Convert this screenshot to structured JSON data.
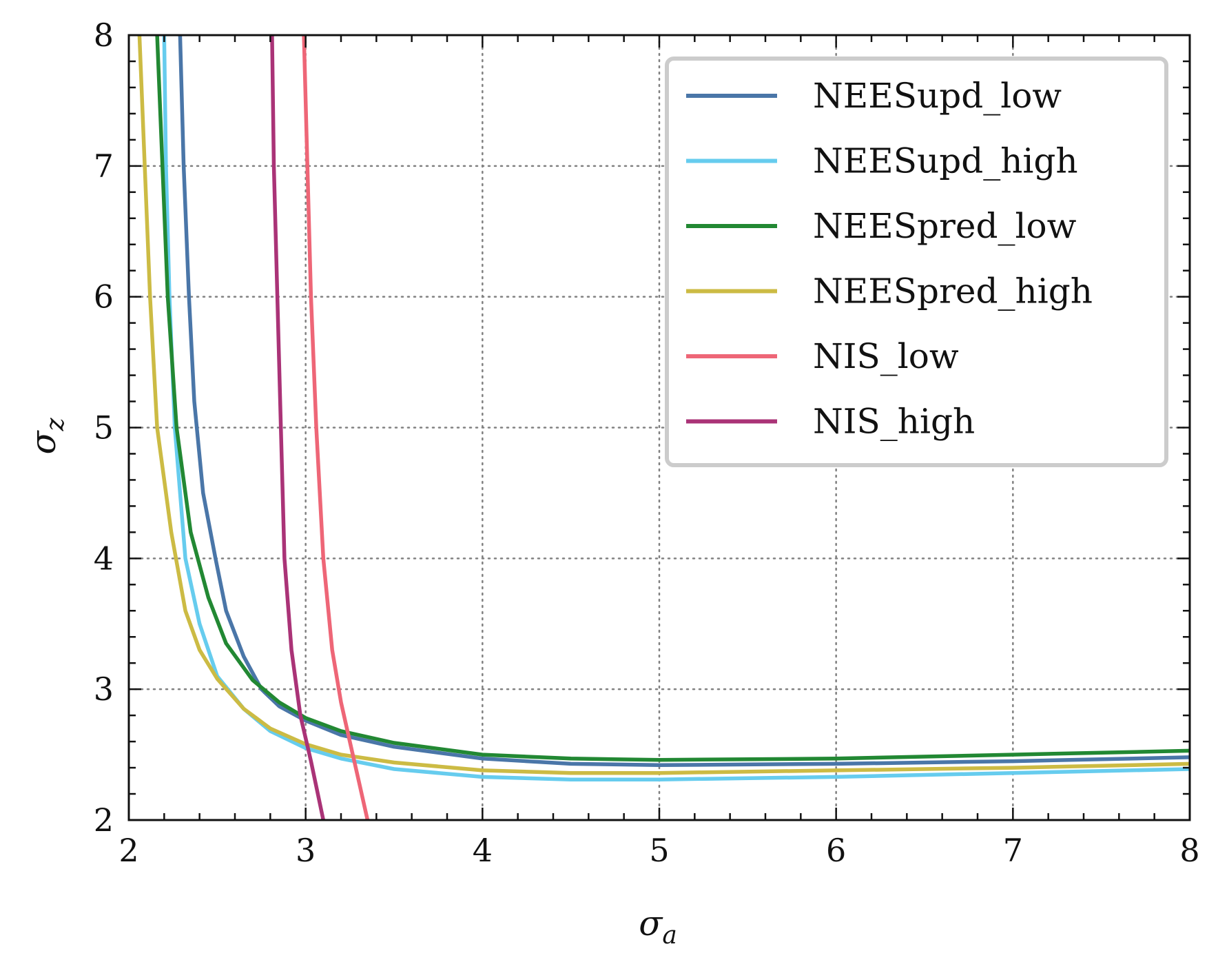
{
  "chart_data": {
    "type": "line",
    "title": "",
    "xlabel": "σ",
    "xlabel_sub": "a",
    "ylabel": "σ",
    "ylabel_sub": "z",
    "xlim": [
      2,
      8
    ],
    "ylim": [
      2,
      8
    ],
    "xticks": [
      "2",
      "3",
      "4",
      "5",
      "6",
      "7",
      "8"
    ],
    "yticks": [
      "2",
      "3",
      "4",
      "5",
      "6",
      "7",
      "8"
    ],
    "grid": true,
    "legend_position": "top-right",
    "series": [
      {
        "name": "NEESupd_low",
        "color": "#4a76a8",
        "points": [
          [
            2.29,
            8.0
          ],
          [
            2.31,
            7.0
          ],
          [
            2.34,
            6.0
          ],
          [
            2.37,
            5.2
          ],
          [
            2.42,
            4.5
          ],
          [
            2.49,
            4.0
          ],
          [
            2.55,
            3.6
          ],
          [
            2.65,
            3.25
          ],
          [
            2.75,
            3.0
          ],
          [
            2.85,
            2.87
          ],
          [
            3.0,
            2.76
          ],
          [
            3.2,
            2.65
          ],
          [
            3.5,
            2.56
          ],
          [
            4.0,
            2.47
          ],
          [
            4.5,
            2.43
          ],
          [
            5.0,
            2.42
          ],
          [
            6.0,
            2.43
          ],
          [
            7.0,
            2.45
          ],
          [
            8.0,
            2.48
          ]
        ]
      },
      {
        "name": "NEESupd_high",
        "color": "#66ccee",
        "points": [
          [
            2.2,
            8.0
          ],
          [
            2.21,
            7.0
          ],
          [
            2.23,
            6.0
          ],
          [
            2.26,
            5.0
          ],
          [
            2.32,
            4.0
          ],
          [
            2.4,
            3.5
          ],
          [
            2.5,
            3.1
          ],
          [
            2.65,
            2.85
          ],
          [
            2.8,
            2.68
          ],
          [
            3.0,
            2.55
          ],
          [
            3.2,
            2.47
          ],
          [
            3.5,
            2.39
          ],
          [
            4.0,
            2.33
          ],
          [
            4.5,
            2.31
          ],
          [
            5.0,
            2.31
          ],
          [
            6.0,
            2.33
          ],
          [
            7.0,
            2.36
          ],
          [
            8.0,
            2.39
          ]
        ]
      },
      {
        "name": "NEESpred_low",
        "color": "#228833",
        "points": [
          [
            2.16,
            8.0
          ],
          [
            2.19,
            7.0
          ],
          [
            2.22,
            6.0
          ],
          [
            2.27,
            5.0
          ],
          [
            2.35,
            4.2
          ],
          [
            2.45,
            3.7
          ],
          [
            2.55,
            3.35
          ],
          [
            2.7,
            3.07
          ],
          [
            2.85,
            2.9
          ],
          [
            3.0,
            2.78
          ],
          [
            3.2,
            2.68
          ],
          [
            3.5,
            2.59
          ],
          [
            4.0,
            2.5
          ],
          [
            4.5,
            2.47
          ],
          [
            5.0,
            2.46
          ],
          [
            6.0,
            2.47
          ],
          [
            7.0,
            2.5
          ],
          [
            8.0,
            2.53
          ]
        ]
      },
      {
        "name": "NEESpred_high",
        "color": "#ccbb44",
        "points": [
          [
            2.06,
            8.0
          ],
          [
            2.09,
            7.0
          ],
          [
            2.12,
            6.0
          ],
          [
            2.16,
            5.0
          ],
          [
            2.24,
            4.2
          ],
          [
            2.32,
            3.6
          ],
          [
            2.4,
            3.3
          ],
          [
            2.5,
            3.08
          ],
          [
            2.65,
            2.85
          ],
          [
            2.8,
            2.7
          ],
          [
            3.0,
            2.58
          ],
          [
            3.2,
            2.5
          ],
          [
            3.5,
            2.44
          ],
          [
            4.0,
            2.38
          ],
          [
            4.5,
            2.36
          ],
          [
            5.0,
            2.36
          ],
          [
            6.0,
            2.38
          ],
          [
            7.0,
            2.4
          ],
          [
            8.0,
            2.43
          ]
        ]
      },
      {
        "name": "NIS_low",
        "color": "#ee6677",
        "points": [
          [
            2.99,
            8.0
          ],
          [
            3.01,
            7.0
          ],
          [
            3.03,
            6.0
          ],
          [
            3.06,
            5.0
          ],
          [
            3.1,
            4.0
          ],
          [
            3.15,
            3.3
          ],
          [
            3.2,
            2.9
          ],
          [
            3.25,
            2.6
          ],
          [
            3.3,
            2.3
          ],
          [
            3.35,
            2.0
          ]
        ]
      },
      {
        "name": "NIS_high",
        "color": "#aa3377",
        "points": [
          [
            2.81,
            8.0
          ],
          [
            2.82,
            7.0
          ],
          [
            2.84,
            6.0
          ],
          [
            2.86,
            5.0
          ],
          [
            2.88,
            4.0
          ],
          [
            2.92,
            3.3
          ],
          [
            2.97,
            2.8
          ],
          [
            3.03,
            2.45
          ],
          [
            3.1,
            2.0
          ]
        ]
      }
    ]
  }
}
